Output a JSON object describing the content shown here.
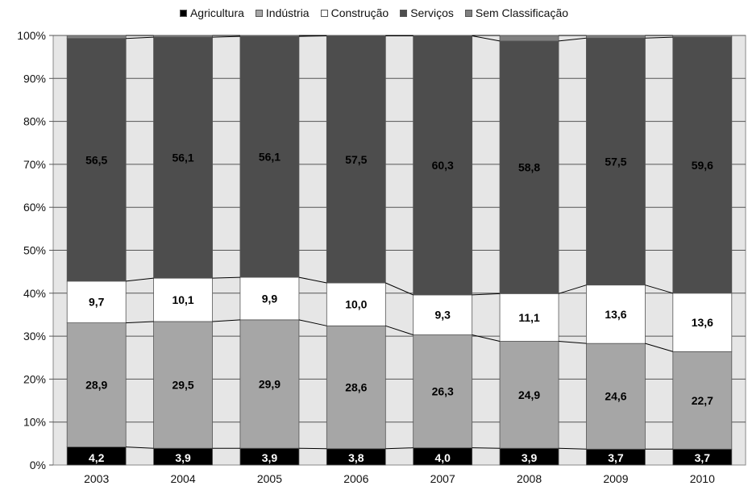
{
  "chart_data": {
    "type": "bar",
    "stacked": true,
    "normalized": true,
    "categories": [
      "2003",
      "2004",
      "2005",
      "2006",
      "2007",
      "2008",
      "2009",
      "2010"
    ],
    "series": [
      {
        "name": "Agricultura",
        "color": "#000000",
        "values": [
          4.2,
          3.9,
          3.9,
          3.8,
          4.0,
          3.9,
          3.7,
          3.7
        ],
        "labels": [
          "4,2",
          "3,9",
          "3,9",
          "3,8",
          "4,0",
          "3,9",
          "3,7",
          "3,7"
        ]
      },
      {
        "name": "Indústria",
        "color": "#a6a6a6",
        "values": [
          28.9,
          29.5,
          29.9,
          28.6,
          26.3,
          24.9,
          24.6,
          22.7
        ],
        "labels": [
          "28,9",
          "29,5",
          "29,9",
          "28,6",
          "26,3",
          "24,9",
          "24,6",
          "22,7"
        ]
      },
      {
        "name": "Construção",
        "color": "#ffffff",
        "values": [
          9.7,
          10.1,
          9.9,
          10.0,
          9.3,
          11.1,
          13.6,
          13.6
        ],
        "labels": [
          "9,7",
          "10,1",
          "9,9",
          "10,0",
          "9,3",
          "11,1",
          "13,6",
          "13,6"
        ]
      },
      {
        "name": "Serviços",
        "color": "#4d4d4d",
        "values": [
          56.5,
          56.1,
          56.1,
          57.5,
          60.3,
          58.8,
          57.5,
          59.6
        ],
        "labels": [
          "56,5",
          "56,1",
          "56,1",
          "57,5",
          "60,3",
          "58,8",
          "57,5",
          "59,6"
        ]
      },
      {
        "name": "Sem Classificação",
        "color": "#808080",
        "values": [
          0.7,
          0.4,
          0.2,
          0.1,
          0.1,
          1.3,
          0.6,
          0.4
        ],
        "labels": [
          "",
          "",
          "",
          "",
          "",
          "",
          "",
          ""
        ]
      }
    ],
    "y_ticks": [
      "0%",
      "10%",
      "20%",
      "30%",
      "40%",
      "50%",
      "60%",
      "70%",
      "80%",
      "90%",
      "100%"
    ],
    "ylim": [
      0,
      100
    ],
    "grid": true,
    "legend_position": "top",
    "plot_background": "#e6e6e6",
    "series_lines": true,
    "title": "",
    "xlabel": "",
    "ylabel": ""
  }
}
